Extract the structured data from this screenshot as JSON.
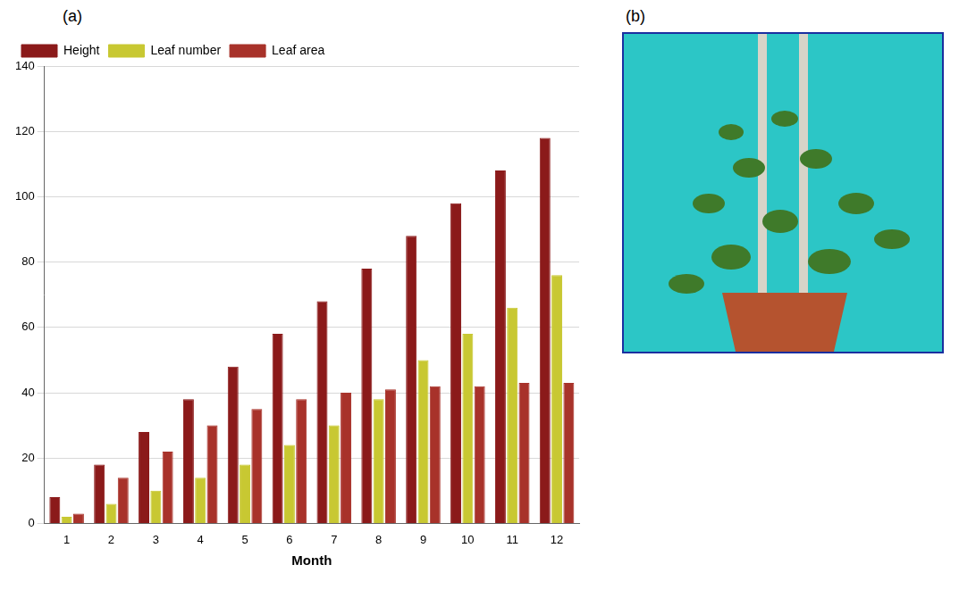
{
  "chart_data": {
    "type": "bar",
    "panel_label": "(a)",
    "x_label": "Month",
    "categories": [
      "1",
      "2",
      "3",
      "4",
      "5",
      "6",
      "7",
      "8",
      "9",
      "10",
      "11",
      "12"
    ],
    "series": [
      {
        "name": "Height",
        "color": "#8b1a1a",
        "values": [
          8,
          18,
          28,
          38,
          48,
          58,
          68,
          78,
          88,
          98,
          108,
          118
        ]
      },
      {
        "name": "Leaf number",
        "color": "#c8c832",
        "values": [
          2,
          6,
          10,
          14,
          18,
          24,
          30,
          38,
          50,
          58,
          66,
          76
        ]
      },
      {
        "name": "Leaf area",
        "color": "#a8322a",
        "values": [
          3,
          14,
          22,
          30,
          35,
          38,
          40,
          41,
          42,
          42,
          43,
          43
        ]
      }
    ],
    "ylim": [
      0,
      140
    ],
    "yticks": [
      0,
      20,
      40,
      60,
      80,
      100,
      120,
      140
    ],
    "grid": true,
    "legend": "top"
  },
  "photo_panel": {
    "label": "(b)"
  }
}
